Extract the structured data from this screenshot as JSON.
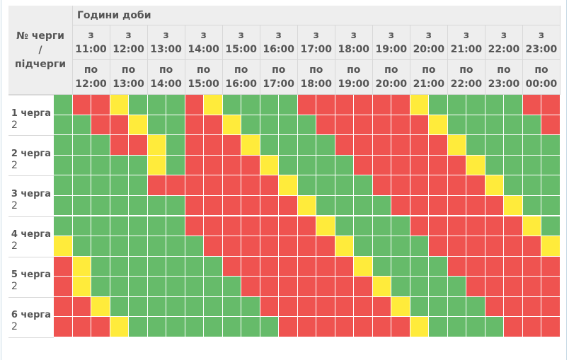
{
  "header": {
    "group_title": "Години доби",
    "corner": "№ черги\n/\nпідчерги",
    "columns": [
      {
        "from": "з\n11:00",
        "to": "по\n12:00"
      },
      {
        "from": "з\n12:00",
        "to": "по\n13:00"
      },
      {
        "from": "з\n13:00",
        "to": "по\n14:00"
      },
      {
        "from": "з\n14:00",
        "to": "по\n15:00"
      },
      {
        "from": "з\n15:00",
        "to": "по\n16:00"
      },
      {
        "from": "з\n16:00",
        "to": "по\n17:00"
      },
      {
        "from": "з\n17:00",
        "to": "по\n18:00"
      },
      {
        "from": "з\n18:00",
        "to": "по\n19:00"
      },
      {
        "from": "з\n19:00",
        "to": "по\n20:00"
      },
      {
        "from": "з\n20:00",
        "to": "по\n21:00"
      },
      {
        "from": "з\n21:00",
        "to": "по\n22:00"
      },
      {
        "from": "з\n22:00",
        "to": "по\n23:00"
      },
      {
        "from": "з\n23:00",
        "to": "по\n00:00"
      }
    ]
  },
  "colors": {
    "G": "#66bb6a",
    "R": "#ef5350",
    "Y": "#ffeb3b"
  },
  "groups": [
    {
      "label": "1 черга",
      "sub": "2",
      "rows": [
        "GRRYGGGRYGGGGRRRRRRYGGGGGRR",
        "GGRRYGGRRYGGGGRRRRRRYGGGGGR"
      ]
    },
    {
      "label": "2 черга",
      "sub": "2",
      "rows": [
        "GGGRRYGRRRYGGGGRRRRRRYGGGGG",
        "GGGGGYGRRRRYGGGGRRRRRRYGGGG"
      ]
    },
    {
      "label": "3 черга",
      "sub": "2",
      "rows": [
        "GGGGGRRRRRRRYGGGGRRRRRRYGGG",
        "GGGGGGGRRRRRRYGGGGRRRRRRYGG"
      ]
    },
    {
      "label": "4 черга",
      "sub": "2",
      "rows": [
        "GGGGGGGRRRRRRRYGGGGRRRRRRYG",
        "YGGGGGGGRRRRRRRYGGGGRRRRRRY"
      ]
    },
    {
      "label": "5 черга",
      "sub": "2",
      "rows": [
        "RYGGGGGGGRRRRRRRYGGGGRRRRRR",
        "RYGGGGGGGGRRRRRRRYGGGGRRRRR"
      ]
    },
    {
      "label": "6 черга",
      "sub": "2",
      "rows": [
        "RRYGGGGGGGGRRRRRRRYGGGGRRRR",
        "RRRYGGGGGGGGRRRRRRRYGGGGRRR"
      ]
    }
  ]
}
